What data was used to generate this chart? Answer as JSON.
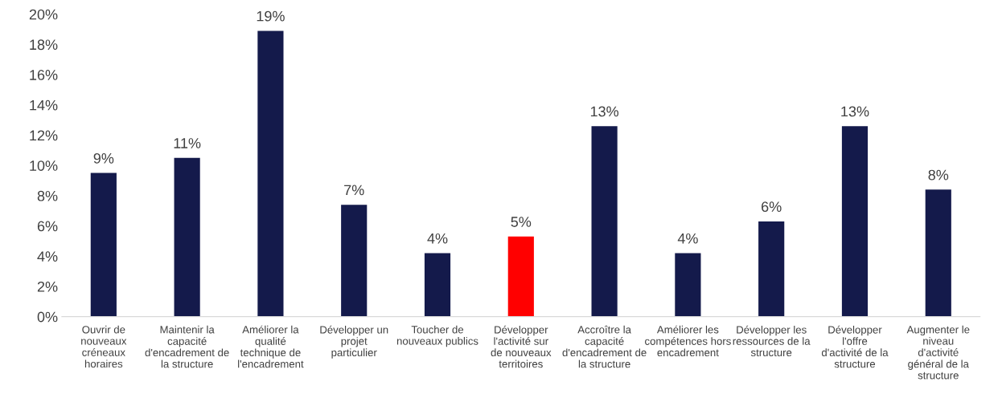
{
  "chart_data": {
    "type": "bar",
    "categories": [
      "Ouvrir de nouveaux créneaux horaires",
      "Maintenir la capacité d'encadrement de la structure",
      "Améliorer la qualité technique de l'encadrement",
      "Développer un projet particulier",
      "Toucher de nouveaux publics",
      "Développer l'activité sur de nouveaux territoires",
      "Accroître la capacité d'encadrement de la structure",
      "Améliorer les compétences hors encadrement",
      "Développer les ressources de la structure",
      "Développer l'offre d'activité de la structure",
      "Augmenter le niveau d'activité général de la structure"
    ],
    "values": [
      9.5,
      10.5,
      18.9,
      7.4,
      4.2,
      5.3,
      12.6,
      4.2,
      6.3,
      12.6,
      8.4
    ],
    "colors": [
      "#141a4b",
      "#141a4b",
      "#141a4b",
      "#141a4b",
      "#141a4b",
      "#ff0000",
      "#141a4b",
      "#141a4b",
      "#141a4b",
      "#141a4b",
      "#141a4b"
    ],
    "value_labels": [
      "9%",
      "11%",
      "19%",
      "7%",
      "4%",
      "5%",
      "13%",
      "4%",
      "6%",
      "13%",
      "8%"
    ],
    "ylim": [
      0,
      20
    ],
    "yticks": [
      {
        "value": 0,
        "label": "0%"
      },
      {
        "value": 2,
        "label": "2%"
      },
      {
        "value": 4,
        "label": "4%"
      },
      {
        "value": 6,
        "label": "6%"
      },
      {
        "value": 8,
        "label": "8%"
      },
      {
        "value": 10,
        "label": "10%"
      },
      {
        "value": 12,
        "label": "12%"
      },
      {
        "value": 14,
        "label": "14%"
      },
      {
        "value": 16,
        "label": "16%"
      },
      {
        "value": 18,
        "label": "18%"
      },
      {
        "value": 20,
        "label": "20%"
      }
    ],
    "grid": false,
    "legend": false
  }
}
